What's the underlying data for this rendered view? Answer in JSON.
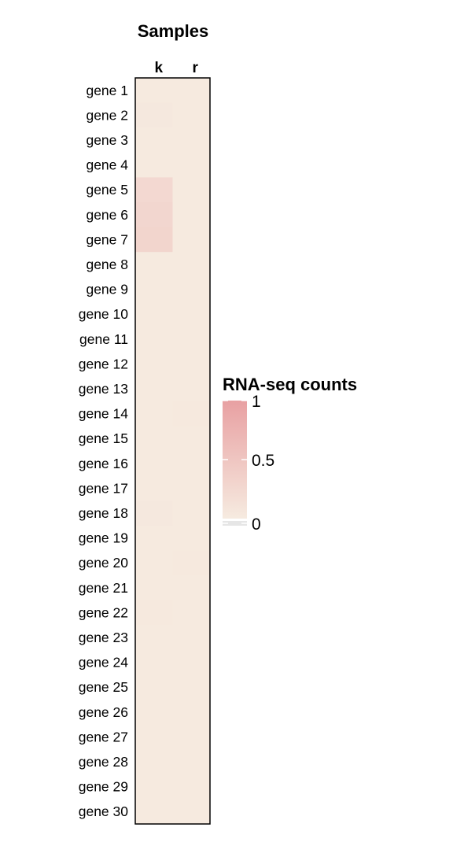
{
  "chart_data": {
    "type": "heatmap",
    "title": "Samples",
    "columns": [
      "k",
      "r"
    ],
    "rows": [
      "gene 1",
      "gene 2",
      "gene 3",
      "gene 4",
      "gene 5",
      "gene 6",
      "gene 7",
      "gene 8",
      "gene 9",
      "gene 10",
      "gene 11",
      "gene 12",
      "gene 13",
      "gene 14",
      "gene 15",
      "gene 16",
      "gene 17",
      "gene 18",
      "gene 19",
      "gene 20",
      "gene 21",
      "gene 22",
      "gene 23",
      "gene 24",
      "gene 25",
      "gene 26",
      "gene 27",
      "gene 28",
      "gene 29",
      "gene 30"
    ],
    "values": [
      [
        0.01,
        0.01
      ],
      [
        0.04,
        0.02
      ],
      [
        0.01,
        0.01
      ],
      [
        0.01,
        0.01
      ],
      [
        0.25,
        0.01
      ],
      [
        0.28,
        0.01
      ],
      [
        0.3,
        0.01
      ],
      [
        0.01,
        0.01
      ],
      [
        0.01,
        0.01
      ],
      [
        0.01,
        0.01
      ],
      [
        0.01,
        0.01
      ],
      [
        0.02,
        0.02
      ],
      [
        0.02,
        0.02
      ],
      [
        0.02,
        0.03
      ],
      [
        0.01,
        0.01
      ],
      [
        0.01,
        0.01
      ],
      [
        0.01,
        0.01
      ],
      [
        0.04,
        0.02
      ],
      [
        0.01,
        0.01
      ],
      [
        0.02,
        0.03
      ],
      [
        0.01,
        0.01
      ],
      [
        0.03,
        0.01
      ],
      [
        0.01,
        0.01
      ],
      [
        0.02,
        0.02
      ],
      [
        0.01,
        0.01
      ],
      [
        0.02,
        0.02
      ],
      [
        0.01,
        0.01
      ],
      [
        0.02,
        0.02
      ],
      [
        0.02,
        0.02
      ],
      [
        0.02,
        0.02
      ]
    ],
    "legend": {
      "title": "RNA-seq counts",
      "ticks": [
        {
          "value": 1,
          "label": "1"
        },
        {
          "value": 0.5,
          "label": "0.5"
        },
        {
          "value": 0,
          "label": "0"
        }
      ],
      "range": [
        0,
        1
      ],
      "color_low": "#f6ebe0",
      "color_high": "#e8a0a2",
      "color_na": "#e6e6e6"
    }
  }
}
